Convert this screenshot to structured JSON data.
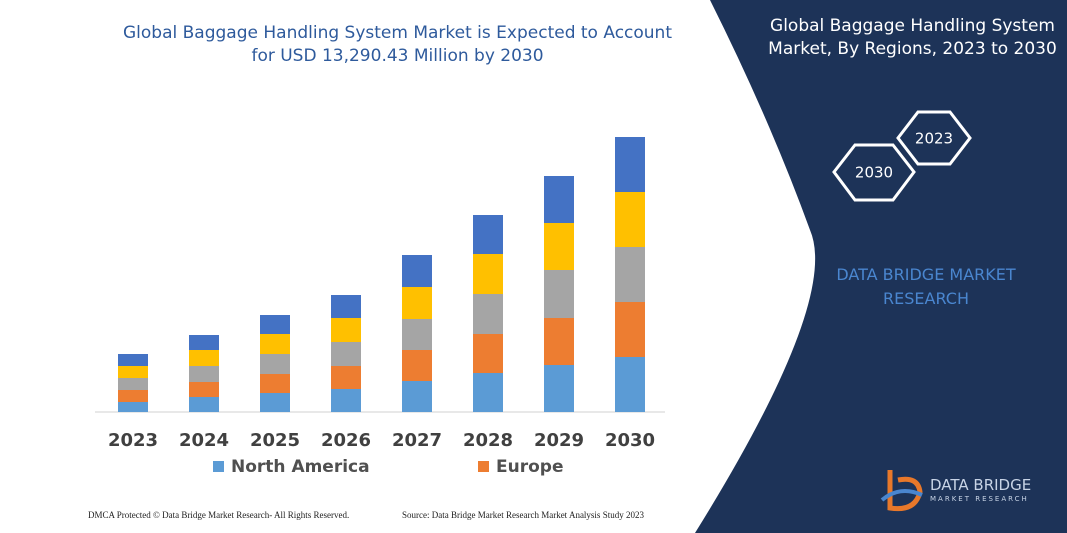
{
  "chart_data": {
    "type": "bar",
    "stacked": true,
    "title": "Global Baggage Handling System Market is Expected to Account for USD 13,290.43 Million by 2030",
    "categories": [
      "2023",
      "2024",
      "2025",
      "2026",
      "2027",
      "2028",
      "2029",
      "2030"
    ],
    "series": [
      {
        "name": "North America",
        "color": "#5b9bd5",
        "values": [
          10,
          15,
          19,
          23,
          31,
          39,
          47,
          55
        ]
      },
      {
        "name": "Europe",
        "color": "#ed7d31",
        "values": [
          12,
          15,
          19,
          23,
          31,
          39,
          47,
          55
        ]
      },
      {
        "color": "#a5a5a5",
        "values": [
          12,
          16,
          20,
          24,
          31,
          40,
          48,
          55
        ]
      },
      {
        "color": "#ffc000",
        "values": [
          12,
          16,
          20,
          24,
          32,
          40,
          47,
          55
        ]
      },
      {
        "color": "#4472c4",
        "values": [
          12,
          15,
          19,
          23,
          32,
          39,
          47,
          55
        ]
      }
    ]
  },
  "panel": {
    "title": "Global Baggage Handling System Market, By Regions, 2023 to 2030",
    "hexagons": [
      "2023",
      "2030"
    ],
    "brand": "DATA BRIDGE MARKET RESEARCH"
  },
  "footer": {
    "left": "DMCA Protected © Data Bridge Market Research- All Rights Reserved.",
    "right": "Source: Data Bridge Market Research Market Analysis Study 2023"
  },
  "logo": {
    "name": "DATA BRIDGE",
    "tagline": "MARKET RESEARCH"
  }
}
